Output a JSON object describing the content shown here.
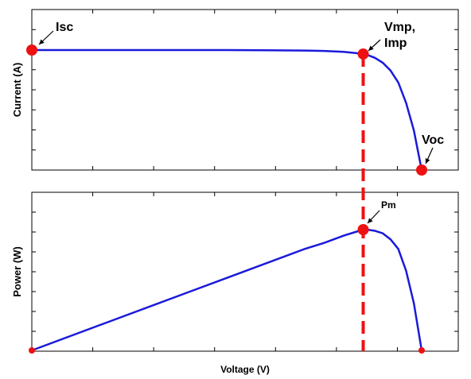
{
  "chart_data": [
    {
      "type": "line",
      "ylabel": "Current (A)",
      "series": [
        {
          "color": "#1a1adb",
          "x": [
            0.0,
            0.2,
            0.4,
            0.5,
            0.6,
            0.7,
            0.75,
            0.8,
            0.83,
            0.85,
            0.86,
            0.88,
            0.9,
            0.92,
            0.94,
            0.96,
            0.98,
            1.0
          ],
          "y": [
            1.0,
            1.0,
            1.0,
            1.0,
            0.999,
            0.996,
            0.993,
            0.985,
            0.975,
            0.967,
            0.96,
            0.935,
            0.895,
            0.83,
            0.73,
            0.56,
            0.33,
            0.0
          ]
        }
      ],
      "points": [
        {
          "label": "Isc",
          "x": 0.0,
          "y": 1.0
        },
        {
          "label": "Vmp,\nImp",
          "x": 0.85,
          "y": 0.967
        },
        {
          "label": "Voc",
          "x": 1.0,
          "y": 0.0
        }
      ],
      "grid": false
    },
    {
      "type": "line",
      "ylabel": "Power (W)",
      "xlabel": "Voltage (V)",
      "series": [
        {
          "color": "#1a1adb",
          "x": [
            0.0,
            0.2,
            0.4,
            0.5,
            0.6,
            0.7,
            0.75,
            0.8,
            0.83,
            0.85,
            0.86,
            0.88,
            0.9,
            0.92,
            0.94,
            0.96,
            0.98,
            1.0
          ],
          "y": [
            0.0,
            0.24,
            0.48,
            0.6,
            0.72,
            0.84,
            0.89,
            0.95,
            0.98,
            1.0,
            1.0,
            0.99,
            0.97,
            0.92,
            0.84,
            0.66,
            0.39,
            0.0
          ]
        }
      ],
      "points": [
        {
          "label": "Pm",
          "x": 0.85,
          "y": 1.0
        },
        {
          "label": "",
          "x": 0.0,
          "y": 0.0
        },
        {
          "label": "",
          "x": 1.0,
          "y": 0.0
        }
      ],
      "grid": false
    }
  ],
  "colors": {
    "curve": "#1a1adb",
    "marker": "#ee1111",
    "dashed_line": "#ee1111",
    "axes": "#000000"
  }
}
